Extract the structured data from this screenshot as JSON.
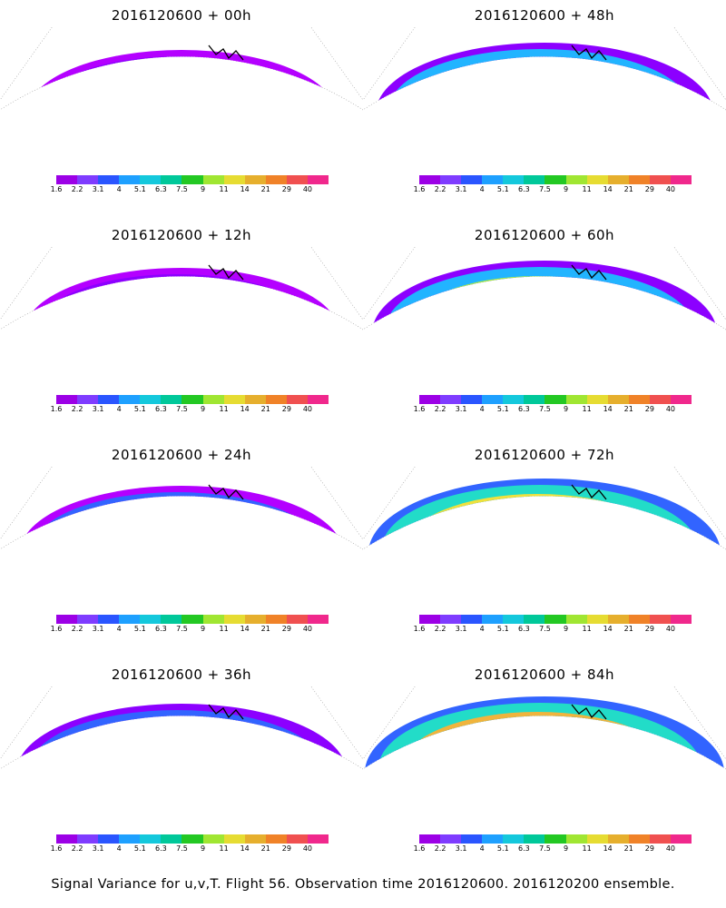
{
  "caption": "Signal Variance for u,v,T. Flight 56. Observation time 2016120600. 2016120200 ensemble.",
  "colors": {
    "bands": [
      "#9c00e6",
      "#7f3cff",
      "#2a55ff",
      "#1ea0ff",
      "#14c8dc",
      "#00c89a",
      "#23c823",
      "#a0e632",
      "#e6dc32",
      "#e6af2d",
      "#f08228",
      "#f05050",
      "#f0288c"
    ],
    "contour_scale": [
      "#b400ff",
      "#8c00ff",
      "#3264ff",
      "#22b4ff",
      "#22dcc8",
      "#14c878",
      "#3cdc3c",
      "#b4f03c",
      "#f0e13c",
      "#f0b43c",
      "#f57d32",
      "#f04b4b",
      "#e61e8c"
    ]
  },
  "colorbar_labels": [
    "1.6",
    "2.2",
    "3.1",
    "4",
    "5.1",
    "6.3",
    "7.5",
    "9",
    "11",
    "14",
    "21",
    "29",
    "40"
  ],
  "panels": [
    {
      "title": "2016120600 + 00h",
      "intensity": 0
    },
    {
      "title": "2016120600 + 48h",
      "intensity": 4
    },
    {
      "title": "2016120600 + 12h",
      "intensity": 1
    },
    {
      "title": "2016120600 + 60h",
      "intensity": 5
    },
    {
      "title": "2016120600 + 24h",
      "intensity": 2
    },
    {
      "title": "2016120600 + 72h",
      "intensity": 6
    },
    {
      "title": "2016120600 + 36h",
      "intensity": 3
    },
    {
      "title": "2016120600 + 84h",
      "intensity": 7
    }
  ]
}
